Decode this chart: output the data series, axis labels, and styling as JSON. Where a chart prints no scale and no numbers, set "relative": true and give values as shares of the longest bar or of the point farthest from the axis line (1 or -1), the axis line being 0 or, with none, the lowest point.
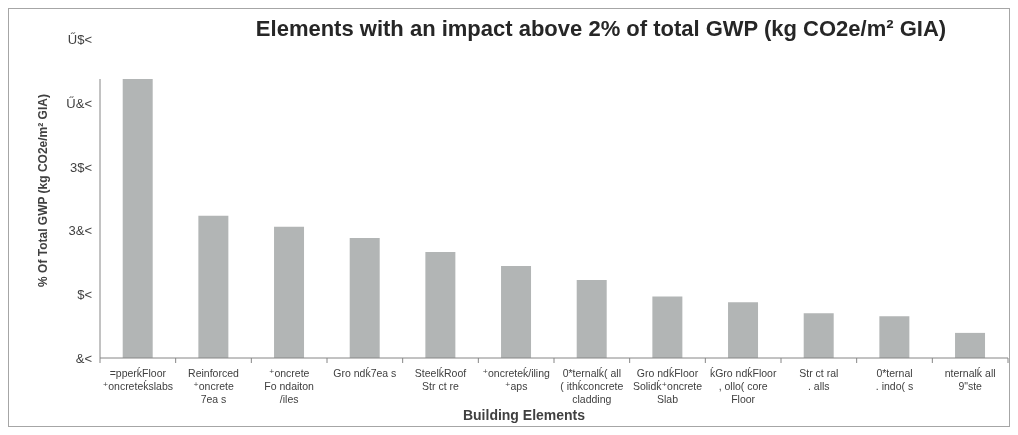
{
  "chart_data": {
    "type": "bar",
    "title": "Elements with an impact above 2% of total GWP (kg CO2e/m² GIA)",
    "xlabel": "Building Elements",
    "ylabel": "% Of Total GWP (kg CO2e/m² GIA)",
    "categories": [
      "=pperḱFloor\n⁺oncreteḱslabs",
      "Reinforced\n⁺oncrete\n7ea s",
      "⁺oncrete\nFo ndaiton\n/iles",
      "Gro ndḱ7ea s",
      "SteelḱRoof\nStr ct re",
      "⁺oncreteḱ/iling\n⁺aps",
      "0*ternalḱ( all\n( ithḱconcrete\ncladding",
      "Gro ndḱFloor\nSolidḱ⁺oncrete\nSlab",
      "ḱGro ndḱFloor\n, ollo( core\nFloor",
      "Str ct ral\n. alls",
      "0*ternal\n. indo( s",
      "nternalḱ all\n9\"ste"
    ],
    "values": [
      1,
      0.51,
      0.47,
      0.43,
      0.38,
      0.33,
      0.28,
      0.22,
      0.2,
      0.16,
      0.15,
      0.09
    ],
    "color": "#b2b5b5",
    "relative": true,
    "annotations": [
      "Ű$<",
      "Ű&<",
      "3$<",
      "3&<",
      "$<",
      "&<"
    ]
  }
}
